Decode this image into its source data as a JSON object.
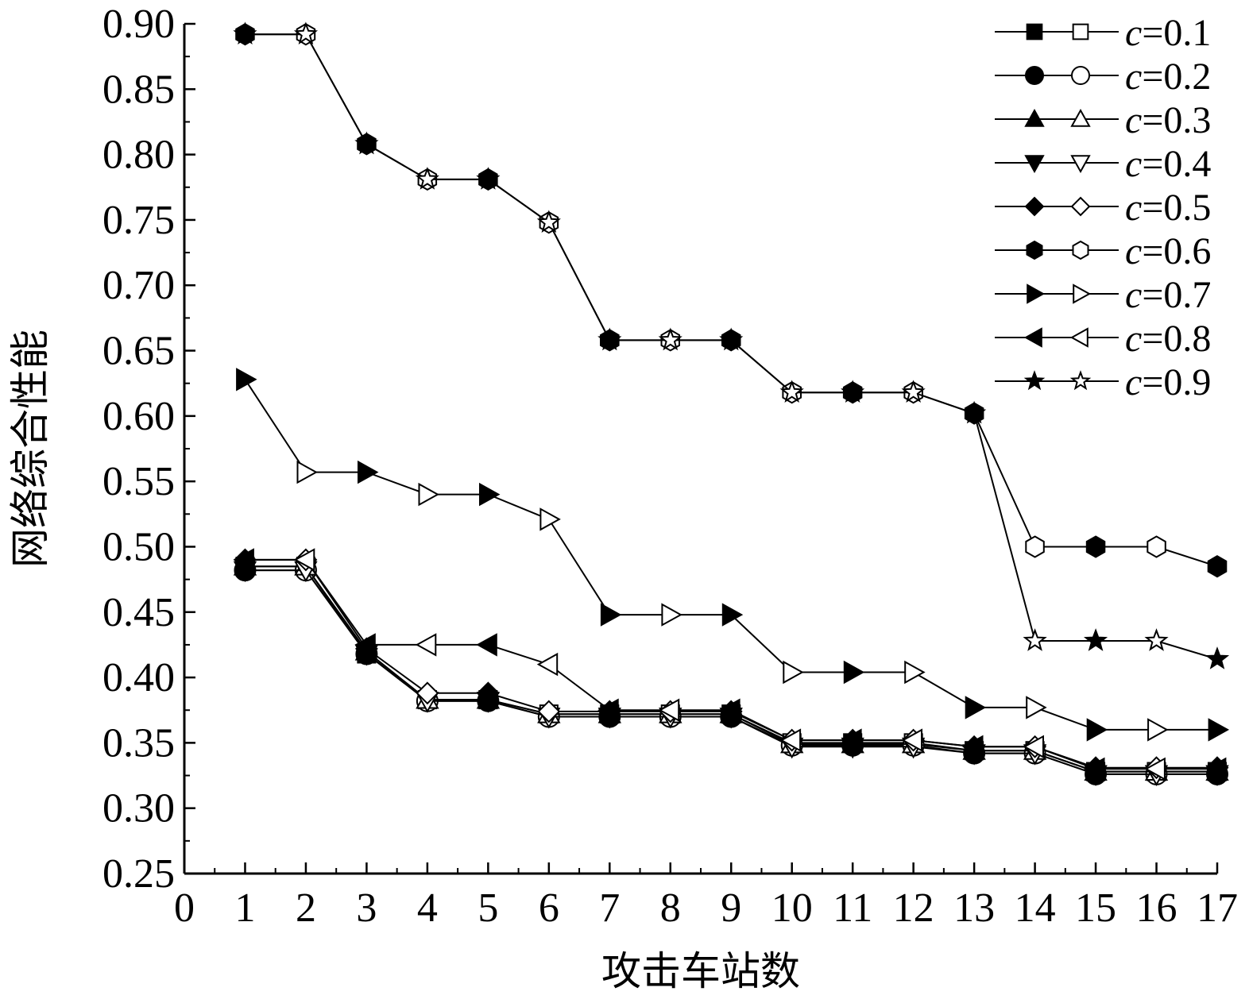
{
  "chart_data": {
    "type": "line",
    "title": "",
    "xlabel": "攻击车站数",
    "ylabel": "网络综合性能",
    "xlim": [
      0,
      17
    ],
    "ylim": [
      0.25,
      0.9
    ],
    "x_ticks": [
      "0",
      "1",
      "2",
      "3",
      "4",
      "5",
      "6",
      "7",
      "8",
      "9",
      "10",
      "11",
      "12",
      "13",
      "14",
      "15",
      "16",
      "17"
    ],
    "y_ticks": [
      "0.25",
      "0.30",
      "0.35",
      "0.40",
      "0.45",
      "0.50",
      "0.55",
      "0.60",
      "0.65",
      "0.70",
      "0.75",
      "0.80",
      "0.85",
      "0.90"
    ],
    "legend_position": "top-right",
    "legend_prefix": "c",
    "series": [
      {
        "name": "=0.1",
        "marker": "square",
        "x": [
          1,
          2,
          3,
          4,
          5,
          6,
          7,
          8,
          9,
          10,
          11,
          12,
          13,
          14,
          15,
          16,
          17
        ],
        "values": [
          0.485,
          0.485,
          0.418,
          0.383,
          0.383,
          0.372,
          0.372,
          0.372,
          0.372,
          0.35,
          0.35,
          0.35,
          0.344,
          0.344,
          0.328,
          0.328,
          0.328
        ]
      },
      {
        "name": "=0.2",
        "marker": "circle",
        "x": [
          1,
          2,
          3,
          4,
          5,
          6,
          7,
          8,
          9,
          10,
          11,
          12,
          13,
          14,
          15,
          16,
          17
        ],
        "values": [
          0.482,
          0.482,
          0.418,
          0.382,
          0.382,
          0.37,
          0.37,
          0.37,
          0.37,
          0.348,
          0.348,
          0.348,
          0.342,
          0.342,
          0.326,
          0.326,
          0.326
        ]
      },
      {
        "name": "=0.3",
        "marker": "triangle-up",
        "x": [
          1,
          2,
          3,
          4,
          5,
          6,
          7,
          8,
          9,
          10,
          11,
          12,
          13,
          14,
          15,
          16,
          17
        ],
        "values": [
          0.485,
          0.485,
          0.42,
          0.383,
          0.383,
          0.372,
          0.372,
          0.372,
          0.372,
          0.349,
          0.349,
          0.349,
          0.344,
          0.344,
          0.328,
          0.328,
          0.328
        ]
      },
      {
        "name": "=0.4",
        "marker": "triangle-down",
        "x": [
          1,
          2,
          3,
          4,
          5,
          6,
          7,
          8,
          9,
          10,
          11,
          12,
          13,
          14,
          15,
          16,
          17
        ],
        "values": [
          0.482,
          0.482,
          0.418,
          0.382,
          0.382,
          0.37,
          0.37,
          0.37,
          0.37,
          0.347,
          0.347,
          0.347,
          0.342,
          0.342,
          0.326,
          0.326,
          0.326
        ]
      },
      {
        "name": "=0.5",
        "marker": "diamond",
        "x": [
          1,
          2,
          3,
          4,
          5,
          6,
          7,
          8,
          9,
          10,
          11,
          12,
          13,
          14,
          15,
          16,
          17
        ],
        "values": [
          0.49,
          0.49,
          0.422,
          0.388,
          0.388,
          0.374,
          0.374,
          0.374,
          0.374,
          0.352,
          0.352,
          0.352,
          0.347,
          0.347,
          0.331,
          0.331,
          0.331
        ]
      },
      {
        "name": "=0.6",
        "marker": "hexagon",
        "x": [
          1,
          2,
          3,
          4,
          5,
          6,
          7,
          8,
          9,
          10,
          11,
          12,
          13,
          14,
          15,
          16,
          17
        ],
        "values": [
          0.892,
          0.892,
          0.808,
          0.781,
          0.781,
          0.748,
          0.658,
          0.658,
          0.658,
          0.618,
          0.618,
          0.618,
          0.602,
          0.5,
          0.5,
          0.5,
          0.485
        ]
      },
      {
        "name": "=0.7",
        "marker": "triangle-right",
        "x": [
          1,
          2,
          3,
          4,
          5,
          6,
          7,
          8,
          9,
          10,
          11,
          12,
          13,
          14,
          15,
          16,
          17
        ],
        "values": [
          0.628,
          0.557,
          0.557,
          0.54,
          0.54,
          0.521,
          0.448,
          0.448,
          0.448,
          0.404,
          0.404,
          0.404,
          0.377,
          0.377,
          0.36,
          0.36,
          0.36
        ]
      },
      {
        "name": "=0.8",
        "marker": "triangle-left",
        "x": [
          1,
          2,
          3,
          4,
          5,
          6,
          7,
          8,
          9,
          10,
          11,
          12,
          13,
          14,
          15,
          16,
          17
        ],
        "values": [
          0.49,
          0.49,
          0.425,
          0.425,
          0.425,
          0.41,
          0.375,
          0.375,
          0.375,
          0.352,
          0.352,
          0.352,
          0.347,
          0.347,
          0.33,
          0.33,
          0.33
        ]
      },
      {
        "name": "=0.9",
        "marker": "star",
        "x": [
          1,
          2,
          3,
          4,
          5,
          6,
          7,
          8,
          9,
          10,
          11,
          12,
          13,
          14,
          15,
          16,
          17
        ],
        "values": [
          0.892,
          0.892,
          0.808,
          0.781,
          0.781,
          0.748,
          0.658,
          0.658,
          0.658,
          0.618,
          0.618,
          0.618,
          0.602,
          0.428,
          0.428,
          0.428,
          0.414
        ]
      }
    ]
  }
}
